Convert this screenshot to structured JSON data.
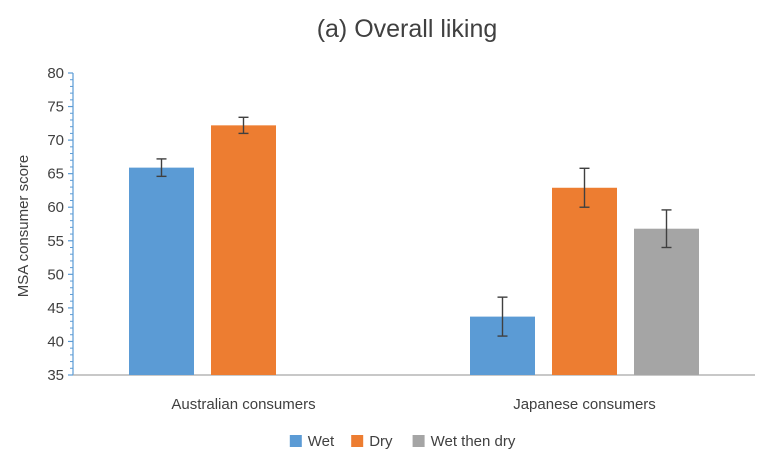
{
  "chart_data": {
    "type": "bar",
    "title": "(a) Overall liking",
    "xlabel": "",
    "ylabel": "MSA consumer score",
    "ylim": [
      35,
      80
    ],
    "yticks": [
      35,
      40,
      45,
      50,
      55,
      60,
      65,
      70,
      75,
      80
    ],
    "categories": [
      "Australian consumers",
      "Japanese consumers"
    ],
    "series": [
      {
        "name": "Wet",
        "color": "#5b9bd5",
        "values": [
          65.9,
          43.7
        ],
        "errors": [
          1.3,
          2.9
        ]
      },
      {
        "name": "Dry",
        "color": "#ed7d31",
        "values": [
          72.2,
          62.9
        ],
        "errors": [
          1.2,
          2.9
        ]
      },
      {
        "name": "Wet then dry",
        "color": "#a5a5a5",
        "values": [
          null,
          56.8
        ],
        "errors": [
          null,
          2.8
        ]
      }
    ],
    "grid": false,
    "legend_position": "bottom"
  }
}
